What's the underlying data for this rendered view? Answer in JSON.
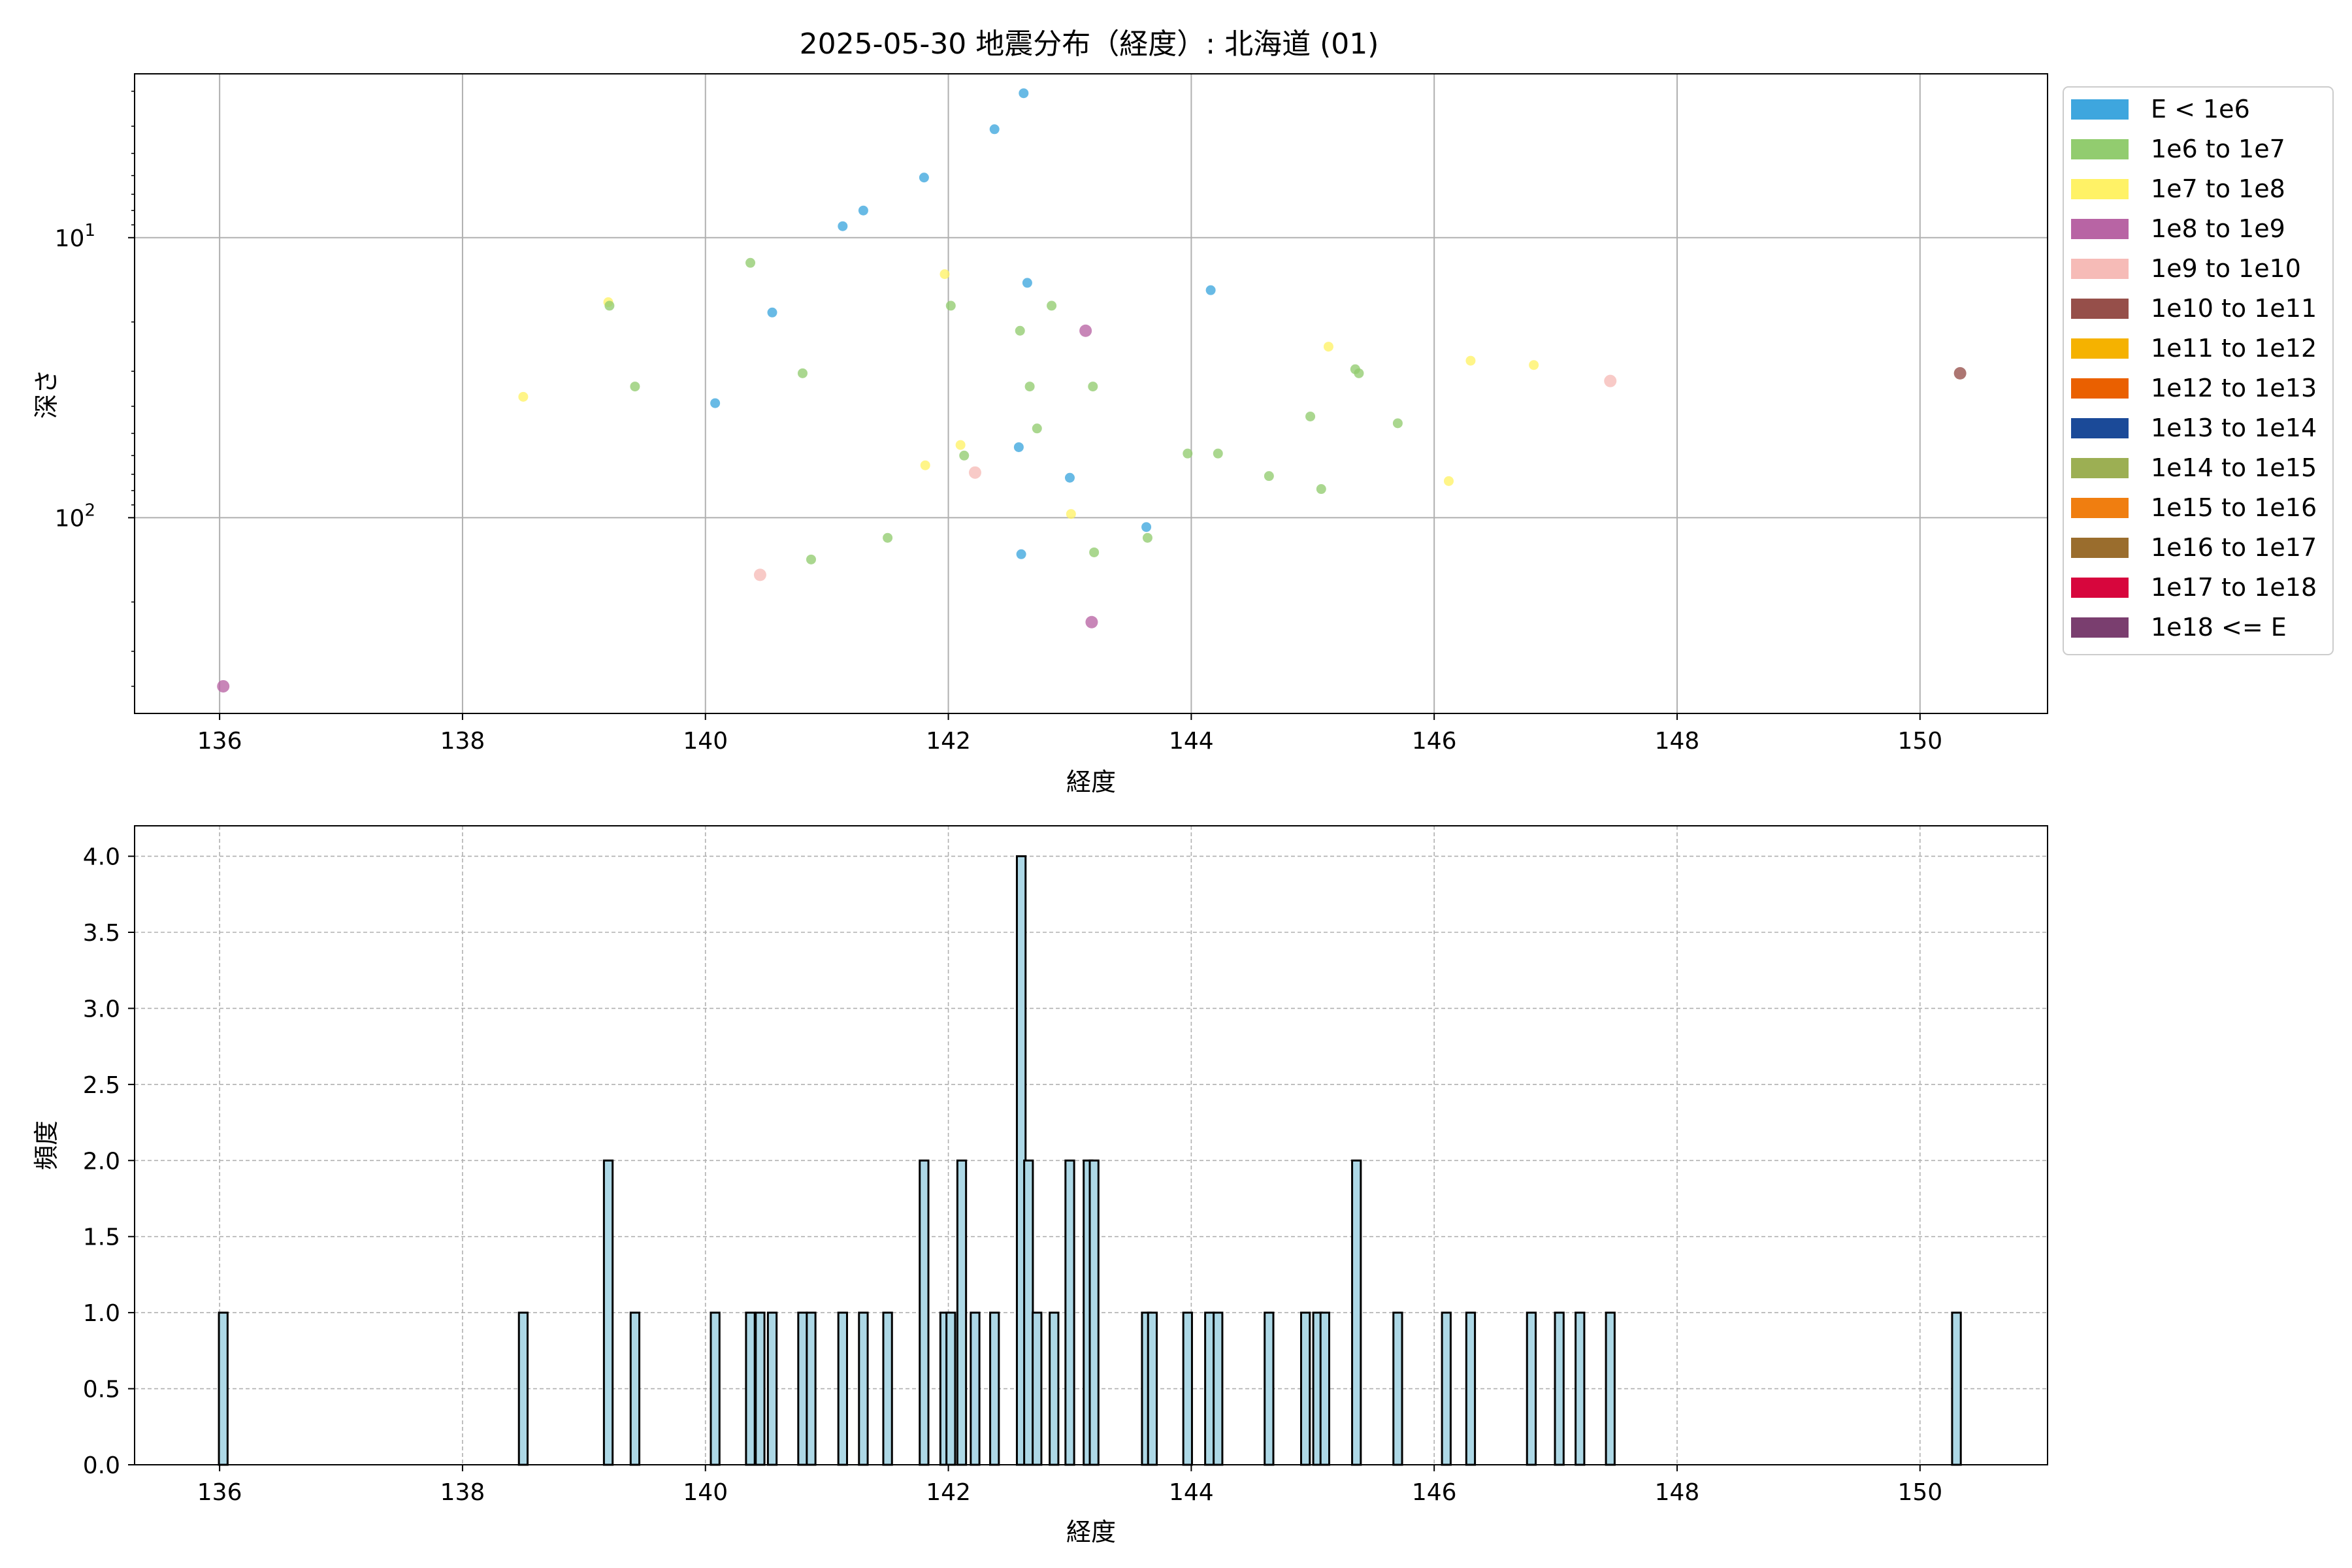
{
  "title": "2025-05-30 地震分布（経度）: 北海道 (01)",
  "colors": {
    "grid": "#b0b0b0",
    "hist_fill": "#add8e6",
    "hist_edge": "#000000"
  },
  "chart_data": [
    {
      "type": "scatter",
      "title": "2025-05-30 地震分布（経度）: 北海道 (01)",
      "xlabel": "経度",
      "ylabel": "深さ",
      "xlim": [
        135.3,
        151.05
      ],
      "ylim": [
        500,
        2.6
      ],
      "y_scale": "log",
      "y_inverted": true,
      "x_ticks": [
        136,
        138,
        140,
        142,
        144,
        146,
        148,
        150
      ],
      "y_ticks": [
        {
          "value": 10,
          "base": "10",
          "exp": "1"
        },
        {
          "value": 100,
          "base": "10",
          "exp": "2"
        }
      ],
      "grid": true,
      "legend_position": "right outside",
      "legend": [
        {
          "label": "E < 1e6",
          "color": "#3ea6de"
        },
        {
          "label": "1e6 to 1e7",
          "color": "#92cc6f"
        },
        {
          "label": "1e7 to 1e8",
          "color": "#fff266"
        },
        {
          "label": "1e8 to 1e9",
          "color": "#b864a4"
        },
        {
          "label": "1e9 to 1e10",
          "color": "#f6bbb7"
        },
        {
          "label": "1e10 to 1e11",
          "color": "#964f4a"
        },
        {
          "label": "1e11 to 1e12",
          "color": "#f5b200"
        },
        {
          "label": "1e12 to 1e13",
          "color": "#ea6000"
        },
        {
          "label": "1e13 to 1e14",
          "color": "#1b4a98"
        },
        {
          "label": "1e14 to 1e15",
          "color": "#9caf53"
        },
        {
          "label": "1e15 to 1e16",
          "color": "#f07e10"
        },
        {
          "label": "1e16 to 1e17",
          "color": "#9a6d2d"
        },
        {
          "label": "1e17 to 1e18",
          "color": "#d7063d"
        },
        {
          "label": "1e18 <= E",
          "color": "#7a3e6f"
        }
      ],
      "points": [
        {
          "x": 136.03,
          "y": 400,
          "c": 3
        },
        {
          "x": 138.5,
          "y": 37,
          "c": 2
        },
        {
          "x": 139.2,
          "y": 17,
          "c": 2
        },
        {
          "x": 139.21,
          "y": 17.5,
          "c": 1
        },
        {
          "x": 139.42,
          "y": 34,
          "c": 1
        },
        {
          "x": 140.08,
          "y": 39,
          "c": 0
        },
        {
          "x": 140.37,
          "y": 12.3,
          "c": 1
        },
        {
          "x": 140.45,
          "y": 160,
          "c": 4
        },
        {
          "x": 140.55,
          "y": 18.5,
          "c": 0
        },
        {
          "x": 140.8,
          "y": 30.5,
          "c": 1
        },
        {
          "x": 140.87,
          "y": 141,
          "c": 1
        },
        {
          "x": 141.13,
          "y": 9.1,
          "c": 0
        },
        {
          "x": 141.3,
          "y": 8,
          "c": 0
        },
        {
          "x": 141.5,
          "y": 118,
          "c": 1
        },
        {
          "x": 141.8,
          "y": 6.1,
          "c": 0
        },
        {
          "x": 141.81,
          "y": 65,
          "c": 2
        },
        {
          "x": 141.97,
          "y": 13.5,
          "c": 2
        },
        {
          "x": 142.02,
          "y": 17.5,
          "c": 1
        },
        {
          "x": 142.1,
          "y": 55,
          "c": 2
        },
        {
          "x": 142.13,
          "y": 60,
          "c": 1
        },
        {
          "x": 142.22,
          "y": 69,
          "c": 4
        },
        {
          "x": 142.38,
          "y": 4.1,
          "c": 0
        },
        {
          "x": 142.58,
          "y": 56,
          "c": 0
        },
        {
          "x": 142.59,
          "y": 21.5,
          "c": 1
        },
        {
          "x": 142.6,
          "y": 135,
          "c": 0
        },
        {
          "x": 142.62,
          "y": 3.05,
          "c": 0
        },
        {
          "x": 142.65,
          "y": 14.5,
          "c": 0
        },
        {
          "x": 142.67,
          "y": 34,
          "c": 1
        },
        {
          "x": 142.73,
          "y": 48,
          "c": 1
        },
        {
          "x": 142.85,
          "y": 17.5,
          "c": 1
        },
        {
          "x": 143.0,
          "y": 72,
          "c": 0
        },
        {
          "x": 143.01,
          "y": 97,
          "c": 2
        },
        {
          "x": 143.13,
          "y": 21.5,
          "c": 3
        },
        {
          "x": 143.18,
          "y": 236,
          "c": 3
        },
        {
          "x": 143.19,
          "y": 34,
          "c": 1
        },
        {
          "x": 143.2,
          "y": 133,
          "c": 1
        },
        {
          "x": 143.63,
          "y": 108,
          "c": 0
        },
        {
          "x": 143.64,
          "y": 118,
          "c": 1
        },
        {
          "x": 143.97,
          "y": 59,
          "c": 1
        },
        {
          "x": 144.16,
          "y": 15.4,
          "c": 0
        },
        {
          "x": 144.22,
          "y": 59,
          "c": 1
        },
        {
          "x": 144.64,
          "y": 71,
          "c": 1
        },
        {
          "x": 144.98,
          "y": 43.5,
          "c": 1
        },
        {
          "x": 145.07,
          "y": 79,
          "c": 1
        },
        {
          "x": 145.13,
          "y": 24.5,
          "c": 2
        },
        {
          "x": 145.35,
          "y": 29.5,
          "c": 1
        },
        {
          "x": 145.38,
          "y": 30.5,
          "c": 1
        },
        {
          "x": 145.7,
          "y": 46,
          "c": 1
        },
        {
          "x": 146.12,
          "y": 74,
          "c": 2
        },
        {
          "x": 146.3,
          "y": 27.5,
          "c": 2
        },
        {
          "x": 146.82,
          "y": 28.5,
          "c": 2
        },
        {
          "x": 147.45,
          "y": 32.5,
          "c": 4
        },
        {
          "x": 150.33,
          "y": 30.5,
          "c": 5
        }
      ]
    },
    {
      "type": "bar",
      "xlabel": "経度",
      "ylabel": "頻度",
      "xlim": [
        135.3,
        151.05
      ],
      "ylim": [
        0,
        4.2
      ],
      "x_ticks": [
        136,
        138,
        140,
        142,
        144,
        146,
        148,
        150
      ],
      "y_ticks": [
        "0.0",
        "0.5",
        "1.0",
        "1.5",
        "2.0",
        "2.5",
        "3.0",
        "3.5",
        "4.0"
      ],
      "grid": true,
      "grid_style": "dashed",
      "bin_width": 0.0715,
      "bins": [
        {
          "x": 136.03,
          "count": 1
        },
        {
          "x": 138.5,
          "count": 1
        },
        {
          "x": 139.2,
          "count": 2
        },
        {
          "x": 139.42,
          "count": 1
        },
        {
          "x": 140.08,
          "count": 1
        },
        {
          "x": 140.37,
          "count": 1
        },
        {
          "x": 140.45,
          "count": 1
        },
        {
          "x": 140.55,
          "count": 1
        },
        {
          "x": 140.8,
          "count": 1
        },
        {
          "x": 140.87,
          "count": 1
        },
        {
          "x": 141.13,
          "count": 1
        },
        {
          "x": 141.3,
          "count": 1
        },
        {
          "x": 141.5,
          "count": 1
        },
        {
          "x": 141.8,
          "count": 2
        },
        {
          "x": 141.97,
          "count": 1
        },
        {
          "x": 142.02,
          "count": 1
        },
        {
          "x": 142.11,
          "count": 2
        },
        {
          "x": 142.22,
          "count": 1
        },
        {
          "x": 142.38,
          "count": 1
        },
        {
          "x": 142.6,
          "count": 4
        },
        {
          "x": 142.66,
          "count": 2
        },
        {
          "x": 142.73,
          "count": 1
        },
        {
          "x": 142.87,
          "count": 1
        },
        {
          "x": 143.0,
          "count": 2
        },
        {
          "x": 143.15,
          "count": 2
        },
        {
          "x": 143.2,
          "count": 2
        },
        {
          "x": 143.63,
          "count": 1
        },
        {
          "x": 143.68,
          "count": 1
        },
        {
          "x": 143.97,
          "count": 1
        },
        {
          "x": 144.15,
          "count": 1
        },
        {
          "x": 144.22,
          "count": 1
        },
        {
          "x": 144.64,
          "count": 1
        },
        {
          "x": 144.94,
          "count": 1
        },
        {
          "x": 145.04,
          "count": 1
        },
        {
          "x": 145.1,
          "count": 1
        },
        {
          "x": 145.36,
          "count": 2
        },
        {
          "x": 145.7,
          "count": 1
        },
        {
          "x": 146.1,
          "count": 1
        },
        {
          "x": 146.3,
          "count": 1
        },
        {
          "x": 146.8,
          "count": 1
        },
        {
          "x": 147.03,
          "count": 1
        },
        {
          "x": 147.2,
          "count": 1
        },
        {
          "x": 147.45,
          "count": 1
        },
        {
          "x": 150.3,
          "count": 1
        }
      ]
    }
  ]
}
